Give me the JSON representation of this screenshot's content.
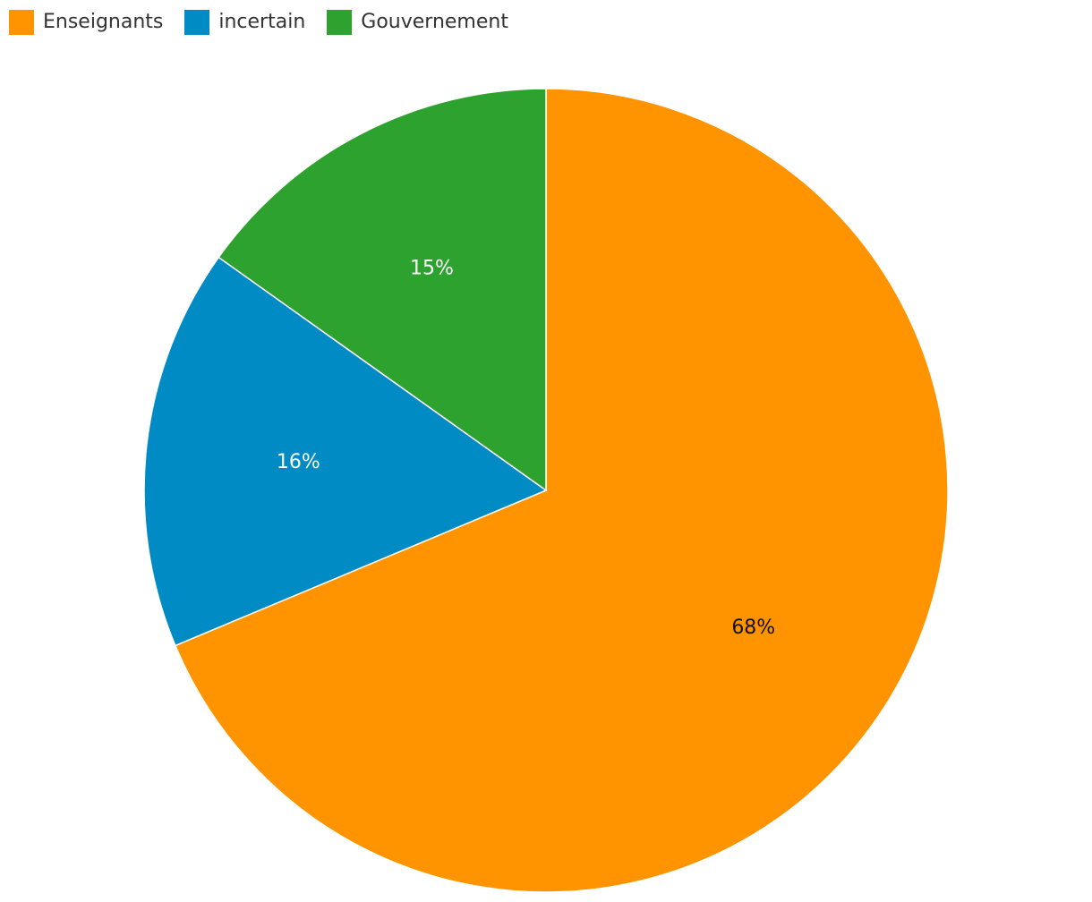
{
  "chart_data": {
    "type": "pie",
    "categories": [
      "Enseignants",
      "incertain",
      "Gouvernement"
    ],
    "values": [
      68,
      16,
      15
    ],
    "value_labels": [
      "68%",
      "16%",
      "15%"
    ],
    "colors": [
      "#ff9400",
      "#008bc4",
      "#2ea22e"
    ],
    "label_colors": [
      "#111111",
      "#ffffff",
      "#ffffff"
    ],
    "legend_position": "top-left",
    "start": "top, clockwise"
  }
}
